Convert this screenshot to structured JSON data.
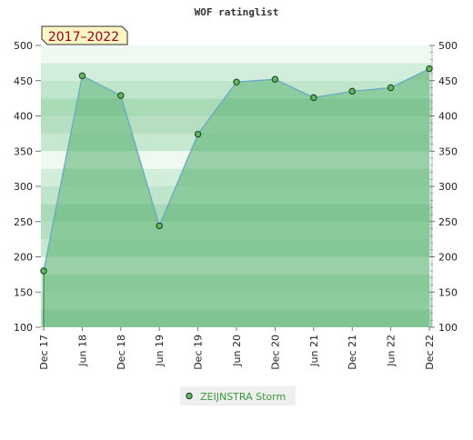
{
  "title": "WOF ratinglist",
  "period_badge": "2017–2022",
  "colors": {
    "line": "#6aa8c8",
    "marker_fill": "#5fb85f",
    "marker_stroke": "#1e3a1e",
    "area_fill": "#7cc38f",
    "legend_text": "#3a9a3a",
    "badge_fill": "#fdf6c3",
    "badge_text": "#a0001a"
  },
  "chart_data": {
    "type": "area",
    "title": "WOF ratinglist",
    "xlabel": "",
    "ylabel": "",
    "x": [
      "Dec 17",
      "Jun 18",
      "Dec 18",
      "Jun 19",
      "Dec 19",
      "Jun 20",
      "Dec 20",
      "Jun 21",
      "Dec 21",
      "Jun 22",
      "Dec 22"
    ],
    "ylim": [
      100,
      500
    ],
    "yticks": [
      100,
      150,
      200,
      250,
      300,
      350,
      400,
      450,
      500
    ],
    "y_axis_both_sides": true,
    "grid": false,
    "legend_position": "bottom-center",
    "series": [
      {
        "name": "ZEIJNSTRA Storm",
        "values": [
          180,
          457,
          429,
          244,
          374,
          448,
          452,
          426,
          435,
          440,
          467
        ]
      }
    ]
  }
}
